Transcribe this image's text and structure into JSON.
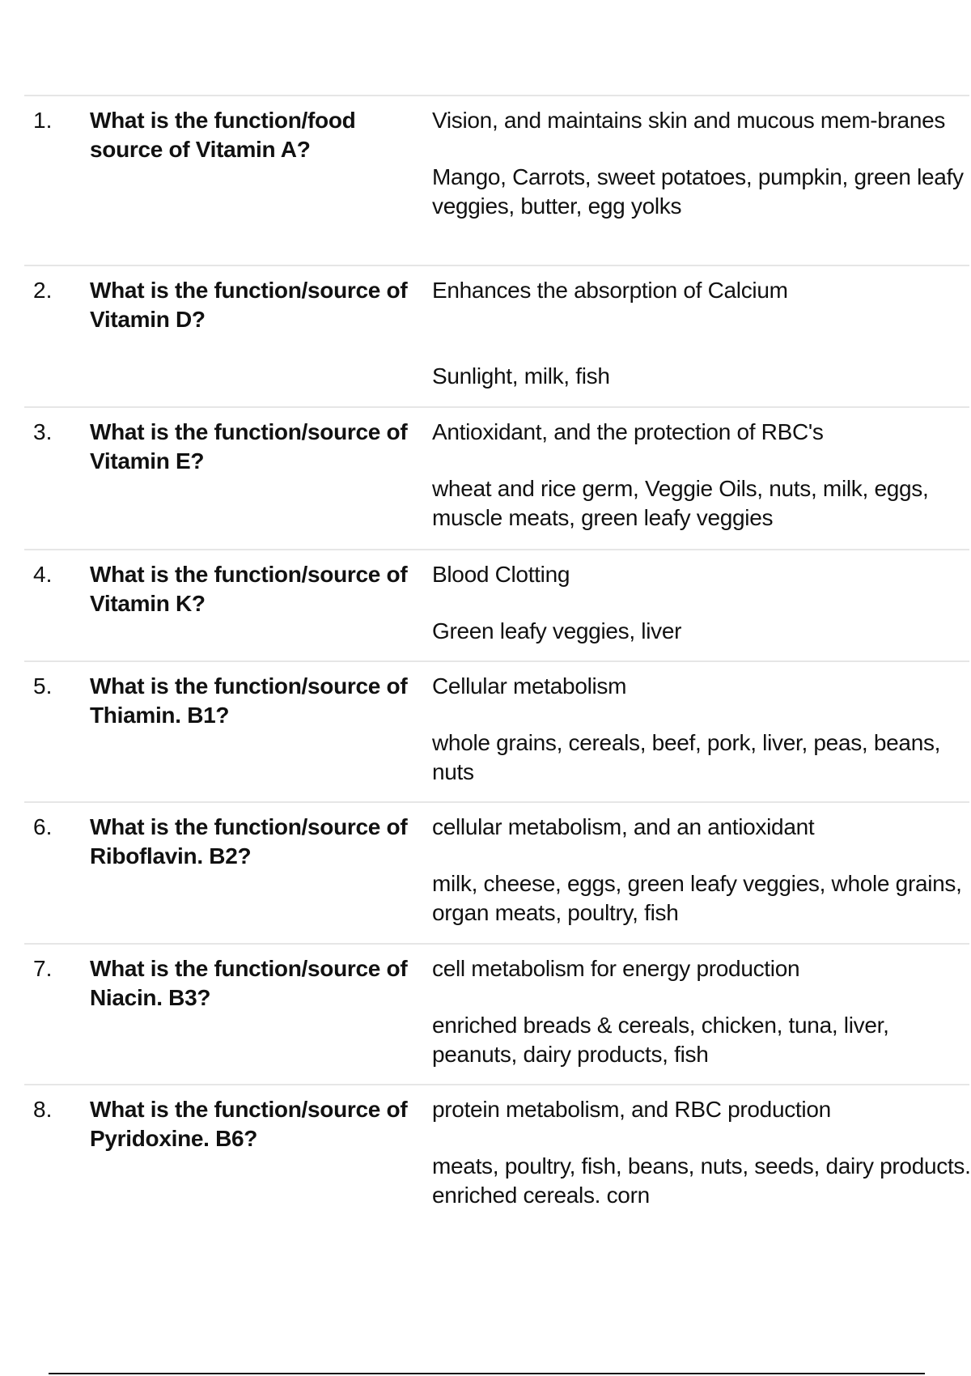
{
  "items": [
    {
      "num": "1.",
      "question": "What is the function/food source of Vitamin A?",
      "function": "Vision, and maintains skin and mucous mem-branes",
      "source": "Mango, Carrots, sweet potatoes, pumpkin, green leafy veggies, butter, egg yolks"
    },
    {
      "num": "2.",
      "question": "What is the function/source of Vitamin D?",
      "function": "Enhances the absorption of Calcium",
      "source": "Sunlight, milk, fish"
    },
    {
      "num": "3.",
      "question": "What is the function/source of Vitamin E?",
      "function": "Antioxidant, and the protection of RBC's",
      "source": "wheat and rice germ, Veggie Oils, nuts, milk, eggs, muscle meats, green leafy veggies"
    },
    {
      "num": "4.",
      "question": "What is the function/source of Vitamin K?",
      "function": "Blood Clotting",
      "source": "Green leafy veggies, liver"
    },
    {
      "num": "5.",
      "question": "What is the function/source of Thiamin. B1?",
      "function": "Cellular metabolism",
      "source": "whole grains, cereals, beef, pork, liver, peas, beans, nuts"
    },
    {
      "num": "6.",
      "question": "What is the function/source of Riboflavin. B2?",
      "function": "cellular metabolism, and an antioxidant",
      "source": "milk, cheese, eggs, green leafy veggies, whole grains, organ meats, poultry, fish"
    },
    {
      "num": "7.",
      "question": "What is the function/source of Niacin. B3?",
      "function": "cell metabolism for energy production",
      "source": "enriched breads & cereals, chicken, tuna, liver, peanuts, dairy products, fish"
    },
    {
      "num": "8.",
      "question": "What is the function/source of Pyridoxine. B6?",
      "function": "protein metabolism, and RBC production",
      "source": "meats, poultry, fish, beans, nuts, seeds, dairy products. enriched cereals. corn"
    }
  ]
}
